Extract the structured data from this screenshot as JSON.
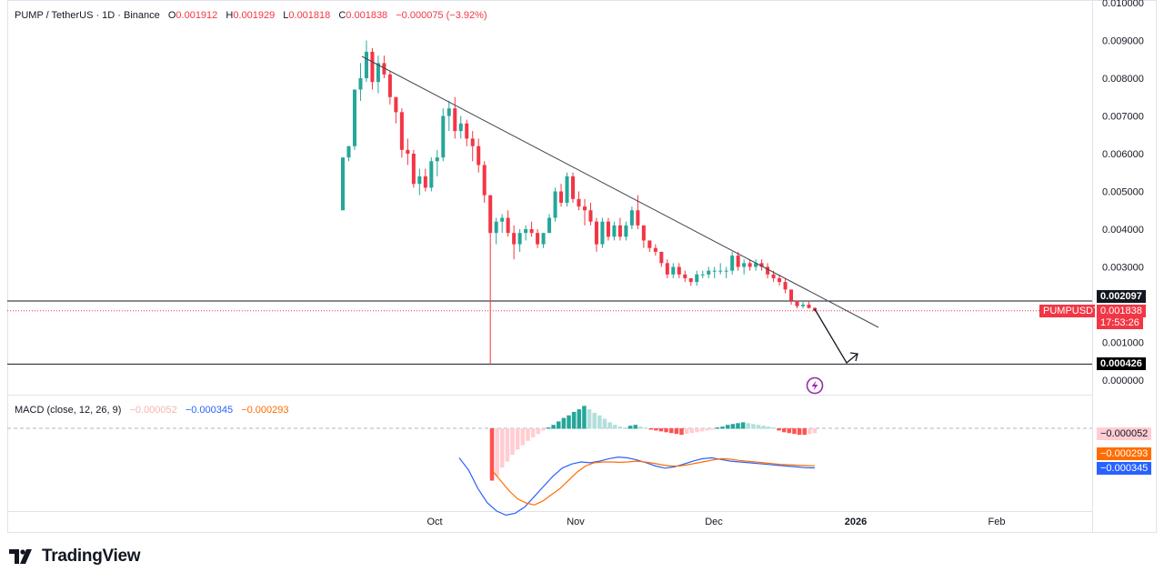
{
  "header": {
    "symbol": "PUMP / TetherUS · 1D · Binance",
    "o_label": "O",
    "o": "0.001912",
    "h_label": "H",
    "h": "0.001929",
    "l_label": "L",
    "l": "0.001818",
    "c_label": "C",
    "c": "0.001838",
    "change": "−0.000075 (−3.92%)"
  },
  "macd_header": {
    "label": "MACD (close, 12, 26, 9)",
    "hist": "−0.000052",
    "macd": "−0.000345",
    "signal": "−0.000293"
  },
  "badges": {
    "resistance": "0.002097",
    "symbol_tag": "PUMPUSDT",
    "last_price": "0.001838",
    "countdown": "17:53:26",
    "support": "0.000426",
    "macd_hist": "−0.000052",
    "macd_signal": "−0.000293",
    "macd_line": "−0.000345"
  },
  "footer": {
    "brand": "TradingView"
  },
  "colors": {
    "up": "#26a69a",
    "down": "#f23645",
    "macd": "#2962ff",
    "signal": "#ff6d00",
    "hist_pos_strong": "#26a69a",
    "hist_pos_weak": "#b2dfdb",
    "hist_neg_strong": "#ff5252",
    "hist_neg_weak": "#ffcdd2"
  },
  "chart_data": {
    "type": "candlestick",
    "price_axis": {
      "ticks": [
        "0.010000",
        "0.009000",
        "0.008000",
        "0.007000",
        "0.006000",
        "0.005000",
        "0.004000",
        "0.003000",
        "0.001000",
        "0.000000"
      ],
      "ylim": [
        0,
        0.01
      ]
    },
    "time_axis": {
      "labels": [
        "Oct",
        "Nov",
        "Dec",
        "2026",
        "Feb"
      ]
    },
    "horizontal_lines": [
      {
        "value": 0.002097
      },
      {
        "value": 0.000426
      }
    ],
    "trendline": {
      "from": {
        "date": "2025-09-15",
        "value": 0.0087
      },
      "to": {
        "date": "2026-01-03",
        "value": 0.00136
      }
    },
    "projection_arrow": {
      "from": {
        "date": "2025-12-25",
        "value": 0.00185
      },
      "via": {
        "date": "2025-12-31",
        "value": 0.00043
      },
      "to": {
        "date": "2026-01-03",
        "value": 0.0007
      }
    },
    "candles_ohlc": [
      [
        0.0045,
        0.0059,
        0.0045,
        0.0059
      ],
      [
        0.0059,
        0.0062,
        0.0058,
        0.0062
      ],
      [
        0.0062,
        0.0077,
        0.0061,
        0.0077
      ],
      [
        0.0077,
        0.0084,
        0.0074,
        0.008
      ],
      [
        0.008,
        0.009,
        0.0079,
        0.0087
      ],
      [
        0.0087,
        0.0088,
        0.0077,
        0.0079
      ],
      [
        0.0079,
        0.0086,
        0.0076,
        0.0084
      ],
      [
        0.0084,
        0.0086,
        0.008,
        0.0081
      ],
      [
        0.0081,
        0.0082,
        0.0073,
        0.0075
      ],
      [
        0.0075,
        0.0075,
        0.0068,
        0.0071
      ],
      [
        0.0071,
        0.0072,
        0.0059,
        0.0061
      ],
      [
        0.0061,
        0.0064,
        0.0057,
        0.006
      ],
      [
        0.006,
        0.0061,
        0.0051,
        0.0052
      ],
      [
        0.0052,
        0.0056,
        0.0049,
        0.0054
      ],
      [
        0.0054,
        0.0056,
        0.005,
        0.0051
      ],
      [
        0.0051,
        0.0059,
        0.005,
        0.0058
      ],
      [
        0.0058,
        0.0061,
        0.0054,
        0.0059
      ],
      [
        0.0059,
        0.0072,
        0.0058,
        0.007
      ],
      [
        0.007,
        0.0074,
        0.0066,
        0.0072
      ],
      [
        0.0072,
        0.0075,
        0.0064,
        0.0066
      ],
      [
        0.0066,
        0.007,
        0.0064,
        0.0068
      ],
      [
        0.0068,
        0.0069,
        0.0062,
        0.0064
      ],
      [
        0.0064,
        0.0066,
        0.0058,
        0.0062
      ],
      [
        0.0062,
        0.0064,
        0.0055,
        0.0057
      ],
      [
        0.0057,
        0.0058,
        0.0047,
        0.0049
      ],
      [
        0.0049,
        0.0049,
        0.00042,
        0.0039
      ],
      [
        0.0039,
        0.0043,
        0.0036,
        0.0042
      ],
      [
        0.0042,
        0.0044,
        0.0039,
        0.0043
      ],
      [
        0.0043,
        0.0045,
        0.0038,
        0.0039
      ],
      [
        0.0039,
        0.0041,
        0.0032,
        0.0036
      ],
      [
        0.0036,
        0.004,
        0.0034,
        0.0039
      ],
      [
        0.0039,
        0.0041,
        0.0037,
        0.004
      ],
      [
        0.004,
        0.0042,
        0.0038,
        0.0039
      ],
      [
        0.0039,
        0.004,
        0.0035,
        0.0036
      ],
      [
        0.0036,
        0.0039,
        0.0035,
        0.0039
      ],
      [
        0.0039,
        0.0044,
        0.0039,
        0.0043
      ],
      [
        0.0043,
        0.0051,
        0.0042,
        0.005
      ],
      [
        0.005,
        0.0052,
        0.0046,
        0.0047
      ],
      [
        0.0047,
        0.0055,
        0.0046,
        0.0054
      ],
      [
        0.0054,
        0.0055,
        0.0047,
        0.0048
      ],
      [
        0.0048,
        0.005,
        0.0045,
        0.0046
      ],
      [
        0.0046,
        0.0048,
        0.0041,
        0.0045
      ],
      [
        0.0045,
        0.0047,
        0.0041,
        0.0042
      ],
      [
        0.0042,
        0.0043,
        0.0034,
        0.0036
      ],
      [
        0.0036,
        0.0043,
        0.0035,
        0.0042
      ],
      [
        0.0042,
        0.0043,
        0.0037,
        0.0038
      ],
      [
        0.0038,
        0.0042,
        0.0037,
        0.0041
      ],
      [
        0.0041,
        0.0043,
        0.0037,
        0.0038
      ],
      [
        0.0038,
        0.0042,
        0.0037,
        0.0041
      ],
      [
        0.0041,
        0.0046,
        0.004,
        0.0045
      ],
      [
        0.0045,
        0.0049,
        0.004,
        0.0041
      ],
      [
        0.0041,
        0.0041,
        0.0035,
        0.0037
      ],
      [
        0.0037,
        0.0037,
        0.0034,
        0.0035
      ],
      [
        0.0035,
        0.0036,
        0.0033,
        0.0034
      ],
      [
        0.0034,
        0.0034,
        0.003,
        0.0031
      ],
      [
        0.0031,
        0.0032,
        0.0027,
        0.0028
      ],
      [
        0.0028,
        0.0031,
        0.0027,
        0.003
      ],
      [
        0.003,
        0.0031,
        0.0027,
        0.0028
      ],
      [
        0.0028,
        0.0029,
        0.0026,
        0.0027
      ],
      [
        0.0027,
        0.0027,
        0.0025,
        0.0026
      ],
      [
        0.0026,
        0.0029,
        0.0025,
        0.0028
      ],
      [
        0.0028,
        0.0029,
        0.0027,
        0.0028
      ],
      [
        0.0028,
        0.003,
        0.0027,
        0.0029
      ],
      [
        0.0029,
        0.003,
        0.0027,
        0.0029
      ],
      [
        0.0029,
        0.0031,
        0.0028,
        0.0029
      ],
      [
        0.0029,
        0.003,
        0.0027,
        0.0029
      ],
      [
        0.0029,
        0.0034,
        0.0028,
        0.0033
      ],
      [
        0.0033,
        0.0034,
        0.0029,
        0.003
      ],
      [
        0.003,
        0.0032,
        0.0028,
        0.0031
      ],
      [
        0.0031,
        0.0032,
        0.0029,
        0.003
      ],
      [
        0.003,
        0.0032,
        0.0029,
        0.0031
      ],
      [
        0.0031,
        0.0032,
        0.0029,
        0.003
      ],
      [
        0.003,
        0.0031,
        0.0027,
        0.0028
      ],
      [
        0.0028,
        0.0029,
        0.0026,
        0.0027
      ],
      [
        0.0027,
        0.0028,
        0.0025,
        0.0026
      ],
      [
        0.0026,
        0.0027,
        0.0023,
        0.0024
      ],
      [
        0.0024,
        0.0024,
        0.002,
        0.0021
      ],
      [
        0.0021,
        0.0021,
        0.0019,
        0.00196
      ],
      [
        0.00196,
        0.0021,
        0.0019,
        0.002
      ],
      [
        0.002,
        0.0021,
        0.0019,
        0.00191
      ],
      [
        0.001912,
        0.001929,
        0.001818,
        0.001838
      ]
    ],
    "macd_hist": [
      -0.0006,
      -0.00055,
      -0.00045,
      -0.00038,
      -0.0003,
      -0.00024,
      -0.00019,
      -0.00014,
      -0.0001,
      -6e-05,
      -2e-05,
      1e-05,
      4e-05,
      8e-05,
      0.00012,
      0.00015,
      0.00019,
      0.00022,
      0.00026,
      0.00022,
      0.00018,
      0.00015,
      0.00011,
      7e-05,
      4e-05,
      2e-05,
      1e-05,
      3e-05,
      4e-05,
      2e-05,
      1e-05,
      -1e-05,
      -2e-05,
      -3e-05,
      -4e-05,
      -5e-05,
      -6e-05,
      -7e-05,
      -6e-05,
      -5e-05,
      -4e-05,
      -3e-05,
      -2e-05,
      -1e-05,
      1e-05,
      2e-05,
      4e-05,
      5e-05,
      6e-05,
      7e-05,
      6e-05,
      5e-05,
      4e-05,
      3e-05,
      2e-05,
      1e-05,
      -2e-05,
      -4e-05,
      -5e-05,
      -6e-05,
      -7e-05,
      -7e-05,
      -6e-05,
      -5.2e-05
    ],
    "macd_line": [
      -0.0001,
      -0.0004,
      -0.00085,
      -0.0012,
      -0.0014,
      -0.0015,
      -0.00145,
      -0.0013,
      -0.00105,
      -0.0008,
      -0.00055,
      -0.00035,
      -0.00025,
      -0.0002,
      -0.00022,
      -0.00018,
      -0.00012,
      -8e-05,
      -0.0001,
      -0.00015,
      -0.00022,
      -0.0003,
      -0.00035,
      -0.00032,
      -0.00025,
      -0.00018,
      -0.00012,
      -0.0001,
      -0.00014,
      -0.00018,
      -0.0002,
      -0.00022,
      -0.00024,
      -0.00026,
      -0.00028,
      -0.0003,
      -0.00032,
      -0.00034,
      -0.000345
    ],
    "signal_line": [
      -0.0004,
      -0.00065,
      -0.0009,
      -0.0011,
      -0.0012,
      -0.00125,
      -0.00115,
      -0.001,
      -0.00085,
      -0.00065,
      -0.00045,
      -0.0003,
      -0.00022,
      -0.0002,
      -0.0002,
      -0.00021,
      -0.0002,
      -0.00018,
      -0.0002,
      -0.00023,
      -0.00027,
      -0.0003,
      -0.0003,
      -0.00027,
      -0.00023,
      -0.00019,
      -0.00015,
      -0.00012,
      -0.00013,
      -0.00016,
      -0.00018,
      -0.0002,
      -0.00022,
      -0.00024,
      -0.00026,
      -0.00027,
      -0.00028,
      -0.00029,
      -0.000293
    ]
  }
}
